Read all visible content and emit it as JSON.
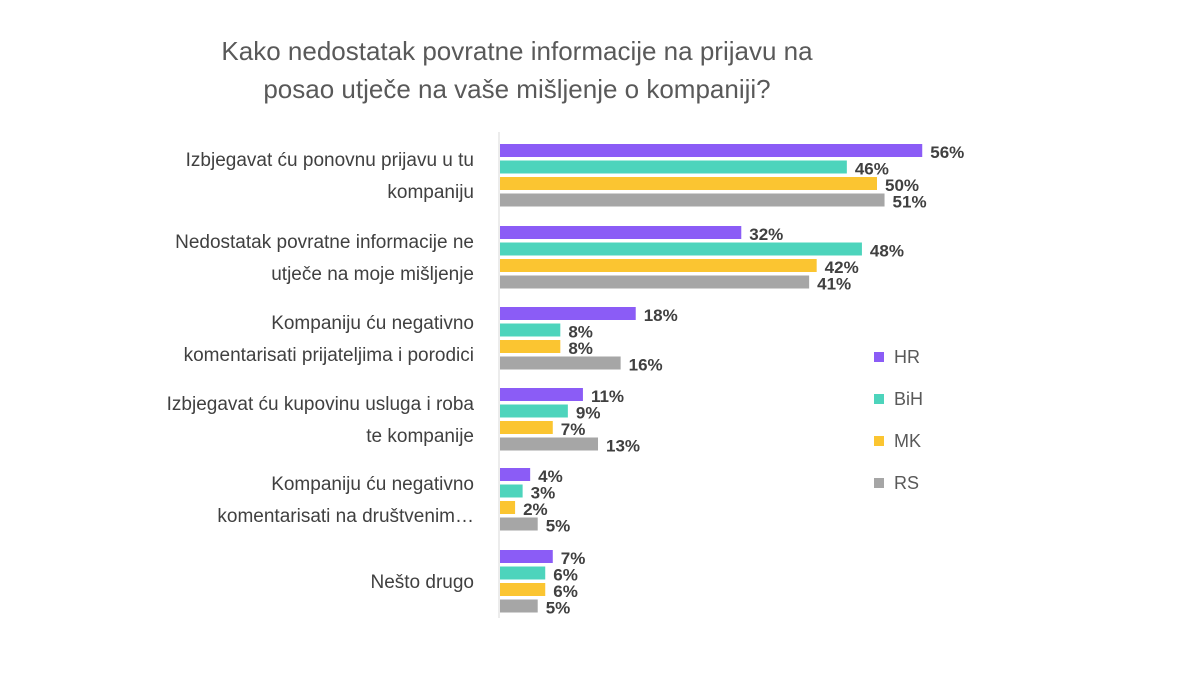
{
  "chart_data": {
    "type": "bar",
    "orientation": "horizontal",
    "title": "Kako nedostatak povratne informacije na prijavu na posao utječe na vaše mišljenje o kompaniji?",
    "title_lines": [
      "Kako nedostatak povratne informacije na prijavu na",
      "posao utječe na vaše mišljenje o kompaniji?"
    ],
    "categories": [
      [
        "Izbjegavat ću ponovnu prijavu u tu",
        "kompaniju"
      ],
      [
        "Nedostatak povratne informacije ne",
        "utječe na moje mišljenje"
      ],
      [
        "Kompaniju ću negativno",
        "komentarisati prijateljima i porodici"
      ],
      [
        "Izbjegavat ću kupovinu usluga i roba",
        "te kompanije"
      ],
      [
        "Kompaniju ću negativno",
        "komentarisati na društvenim…"
      ],
      [
        "Nešto drugo"
      ]
    ],
    "series": [
      {
        "name": "HR",
        "color": "#8b5cf6",
        "values": [
          56,
          32,
          18,
          11,
          4,
          7
        ]
      },
      {
        "name": "BiH",
        "color": "#4dd4bc",
        "values": [
          46,
          48,
          8,
          9,
          3,
          6
        ]
      },
      {
        "name": "MK",
        "color": "#fbc531",
        "values": [
          50,
          42,
          8,
          7,
          2,
          6
        ]
      },
      {
        "name": "RS",
        "color": "#a6a6a6",
        "values": [
          51,
          41,
          16,
          13,
          5,
          5
        ]
      }
    ],
    "value_suffix": "%",
    "xlim": [
      0,
      60
    ],
    "grid": false,
    "legend": "right"
  }
}
